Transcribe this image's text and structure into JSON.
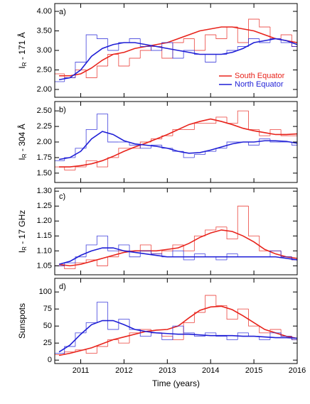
{
  "chart_data": [
    {
      "type": "line",
      "label": "a)",
      "ylabel": {
        "main": "I",
        "sub": "R",
        "rest": " - 171 Å"
      },
      "xlim": [
        2010.4,
        2016
      ],
      "xticks": [
        2011,
        2012,
        2013,
        2014,
        2015,
        2016
      ],
      "ylim": [
        1.8,
        4.2
      ],
      "yticks": [
        {
          "value": 2,
          "label": "2.00"
        },
        {
          "value": 2.5,
          "label": "2.50"
        },
        {
          "value": 3,
          "label": "3.00"
        },
        {
          "value": 3.5,
          "label": "3.50"
        },
        {
          "value": 4,
          "label": "4.00"
        }
      ],
      "legend": "lower right",
      "x": [
        2010.5,
        2010.75,
        2011,
        2011.25,
        2011.5,
        2011.75,
        2012,
        2012.25,
        2012.5,
        2012.75,
        2013,
        2013.25,
        2013.5,
        2013.75,
        2014,
        2014.25,
        2014.5,
        2014.75,
        2015,
        2015.25,
        2015.5,
        2015.75,
        2016
      ],
      "series": [
        {
          "name": "South Equator",
          "color": "#e8231b",
          "values": [
            2.4,
            2.3,
            2.5,
            2.3,
            2.6,
            2.9,
            2.6,
            2.8,
            3.0,
            3.1,
            2.8,
            3.2,
            3.3,
            3.0,
            3.4,
            3.3,
            3.6,
            3.2,
            3.8,
            3.6,
            3.3,
            3.4,
            3.1
          ],
          "smooth": [
            2.35,
            2.35,
            2.4,
            2.55,
            2.75,
            2.9,
            2.95,
            3.05,
            3.1,
            3.15,
            3.2,
            3.3,
            3.4,
            3.5,
            3.55,
            3.6,
            3.6,
            3.55,
            3.5,
            3.4,
            3.3,
            3.25,
            3.2
          ]
        },
        {
          "name": "North Equator",
          "color": "#1f1fd6",
          "values": [
            2.2,
            2.3,
            2.7,
            3.4,
            3.3,
            3.0,
            3.2,
            3.3,
            3.1,
            3.0,
            3.2,
            2.8,
            3.0,
            2.9,
            2.7,
            2.9,
            3.0,
            3.1,
            3.3,
            3.2,
            3.3,
            3.2,
            3.1
          ],
          "smooth": [
            2.25,
            2.3,
            2.5,
            2.85,
            3.05,
            3.15,
            3.2,
            3.2,
            3.15,
            3.1,
            3.05,
            3.0,
            2.95,
            2.9,
            2.9,
            2.9,
            2.95,
            3.05,
            3.2,
            3.25,
            3.3,
            3.25,
            3.15
          ]
        }
      ]
    },
    {
      "type": "line",
      "label": "b)",
      "ylabel": {
        "main": "I",
        "sub": "R",
        "rest": " - 304 Å"
      },
      "xlim": [
        2010.4,
        2016
      ],
      "xticks": [
        2011,
        2012,
        2013,
        2014,
        2015,
        2016
      ],
      "ylim": [
        1.35,
        2.65
      ],
      "yticks": [
        {
          "value": 1.5,
          "label": "1.50"
        },
        {
          "value": 1.75,
          "label": "1.75"
        },
        {
          "value": 2,
          "label": "2.00"
        },
        {
          "value": 2.25,
          "label": "2.25"
        },
        {
          "value": 2.5,
          "label": "2.50"
        }
      ],
      "x": [
        2010.5,
        2010.75,
        2011,
        2011.25,
        2011.5,
        2011.75,
        2012,
        2012.25,
        2012.5,
        2012.75,
        2013,
        2013.25,
        2013.5,
        2013.75,
        2014,
        2014.25,
        2014.5,
        2014.75,
        2015,
        2015.25,
        2015.5,
        2015.75,
        2016
      ],
      "series": [
        {
          "color": "#e8231b",
          "values": [
            1.6,
            1.55,
            1.6,
            1.7,
            1.6,
            1.75,
            1.9,
            1.9,
            2.0,
            2.05,
            2.1,
            2.2,
            2.2,
            2.3,
            2.3,
            2.4,
            2.3,
            2.5,
            2.2,
            2.1,
            2.2,
            2.1,
            2.1
          ],
          "smooth": [
            1.6,
            1.6,
            1.62,
            1.65,
            1.7,
            1.77,
            1.85,
            1.92,
            1.98,
            2.05,
            2.12,
            2.2,
            2.28,
            2.33,
            2.37,
            2.33,
            2.28,
            2.22,
            2.18,
            2.15,
            2.12,
            2.12,
            2.13
          ]
        },
        {
          "color": "#1f1fd6",
          "values": [
            1.7,
            1.75,
            1.9,
            2.2,
            2.45,
            2.0,
            2.0,
            1.95,
            1.9,
            1.95,
            1.9,
            1.85,
            1.75,
            1.8,
            1.85,
            1.9,
            2.0,
            2.0,
            1.95,
            2.05,
            2.0,
            2.0,
            1.95
          ],
          "smooth": [
            1.72,
            1.75,
            1.85,
            2.05,
            2.17,
            2.12,
            2.02,
            1.97,
            1.95,
            1.93,
            1.9,
            1.85,
            1.82,
            1.83,
            1.87,
            1.92,
            1.97,
            2.0,
            2.0,
            2.02,
            2.02,
            2.01,
            1.98
          ]
        }
      ]
    },
    {
      "type": "line",
      "label": "c)",
      "ylabel": {
        "main": "I",
        "sub": "R",
        "rest": " - 17 GHz"
      },
      "xlim": [
        2010.4,
        2016
      ],
      "xticks": [
        2011,
        2012,
        2013,
        2014,
        2015,
        2016
      ],
      "ylim": [
        1.02,
        1.31
      ],
      "yticks": [
        1.05,
        {
          "value": 1.1,
          "label": "1.10"
        },
        1.15,
        {
          "value": 1.2,
          "label": "1.20"
        },
        1.25,
        {
          "value": 1.3,
          "label": "1.30"
        }
      ],
      "x": [
        2010.5,
        2010.75,
        2011,
        2011.25,
        2011.5,
        2011.75,
        2012,
        2012.25,
        2012.5,
        2012.75,
        2013,
        2013.25,
        2013.5,
        2013.75,
        2014,
        2014.25,
        2014.5,
        2014.75,
        2015,
        2015.25,
        2015.5,
        2015.75,
        2016
      ],
      "series": [
        {
          "color": "#e8231b",
          "values": [
            1.05,
            1.04,
            1.06,
            1.07,
            1.05,
            1.08,
            1.1,
            1.1,
            1.12,
            1.09,
            1.1,
            1.12,
            1.1,
            1.15,
            1.17,
            1.18,
            1.14,
            1.25,
            1.15,
            1.1,
            1.1,
            1.08,
            1.07
          ],
          "smooth": [
            1.055,
            1.05,
            1.055,
            1.065,
            1.075,
            1.085,
            1.095,
            1.1,
            1.1,
            1.1,
            1.105,
            1.11,
            1.125,
            1.145,
            1.16,
            1.17,
            1.165,
            1.15,
            1.13,
            1.105,
            1.09,
            1.08,
            1.075
          ]
        },
        {
          "color": "#1f1fd6",
          "values": [
            1.05,
            1.06,
            1.08,
            1.12,
            1.15,
            1.1,
            1.12,
            1.08,
            1.1,
            1.09,
            1.08,
            1.1,
            1.07,
            1.09,
            1.08,
            1.07,
            1.09,
            1.08,
            1.08,
            1.08,
            1.1,
            1.08,
            1.07
          ],
          "smooth": [
            1.055,
            1.065,
            1.085,
            1.1,
            1.11,
            1.11,
            1.1,
            1.095,
            1.09,
            1.085,
            1.08,
            1.08,
            1.08,
            1.08,
            1.08,
            1.08,
            1.08,
            1.08,
            1.08,
            1.08,
            1.08,
            1.075,
            1.07
          ]
        }
      ]
    },
    {
      "type": "line",
      "label": "d)",
      "ylabel": {
        "main": "Sunspots"
      },
      "xlabel": "Time (years)",
      "xlim": [
        2010.4,
        2016
      ],
      "xticks": [
        2011,
        2012,
        2013,
        2014,
        2015,
        2016
      ],
      "ylim": [
        -5,
        120
      ],
      "yticks": [
        0,
        25,
        50,
        75,
        100
      ],
      "x": [
        2010.5,
        2010.75,
        2011,
        2011.25,
        2011.5,
        2011.75,
        2012,
        2012.25,
        2012.5,
        2012.75,
        2013,
        2013.25,
        2013.5,
        2013.75,
        2014,
        2014.25,
        2014.5,
        2014.75,
        2015,
        2015.25,
        2015.5,
        2015.75,
        2016
      ],
      "series": [
        {
          "color": "#e8231b",
          "values": [
            8,
            12,
            15,
            10,
            20,
            30,
            25,
            40,
            45,
            40,
            35,
            30,
            55,
            70,
            95,
            80,
            60,
            75,
            50,
            40,
            45,
            35,
            30
          ],
          "smooth": [
            7,
            10,
            14,
            18,
            24,
            30,
            34,
            38,
            42,
            44,
            45,
            50,
            62,
            73,
            78,
            79,
            74,
            65,
            55,
            45,
            40,
            35,
            32
          ]
        },
        {
          "color": "#1f1fd6",
          "values": [
            10,
            20,
            40,
            55,
            85,
            45,
            60,
            45,
            35,
            40,
            30,
            50,
            40,
            35,
            40,
            35,
            30,
            40,
            35,
            30,
            40,
            35,
            30
          ],
          "smooth": [
            12,
            22,
            38,
            52,
            58,
            58,
            52,
            45,
            42,
            40,
            39,
            38,
            38,
            37,
            36,
            36,
            36,
            35,
            35,
            34,
            33,
            33,
            32
          ]
        }
      ]
    }
  ]
}
